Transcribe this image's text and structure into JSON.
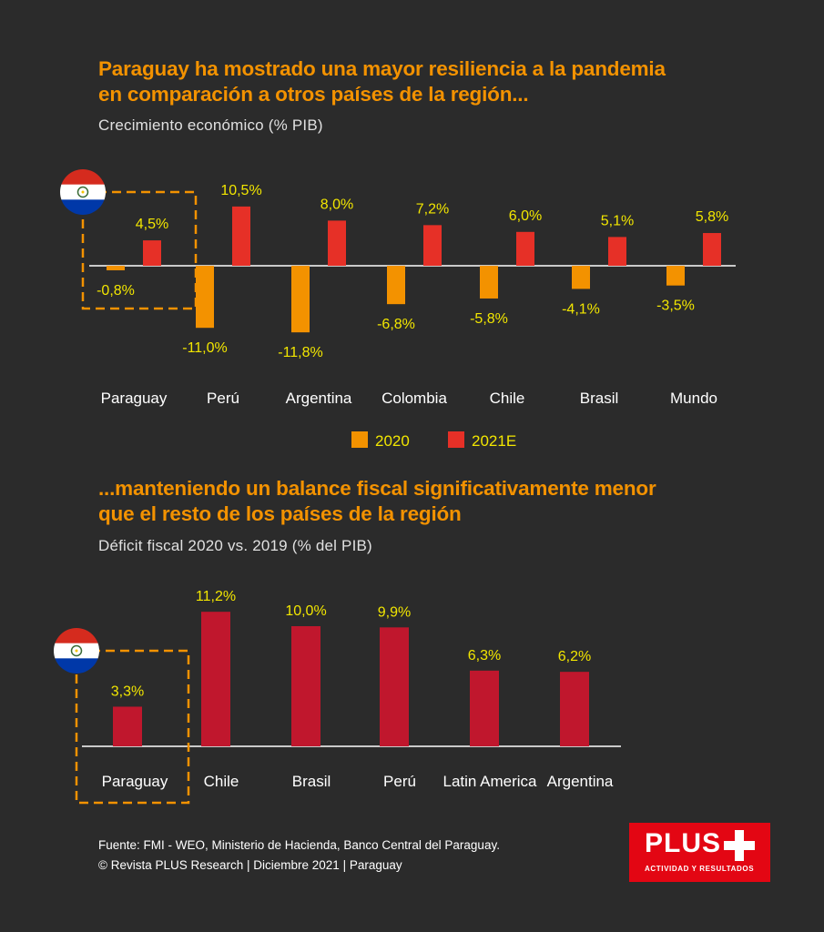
{
  "headline1": [
    "Paraguay ha mostrado una mayor resiliencia a la pandemia",
    "en comparación a otros países de la región..."
  ],
  "subtitle1": "Crecimiento económico (% PIB)",
  "headline2": [
    "...manteniendo un balance fiscal significativamente menor",
    "que el resto de los países de la región"
  ],
  "subtitle2": "Déficit fiscal 2020 vs. 2019 (% del PIB)",
  "colors": {
    "bg": "#2b2b2b",
    "orange": "#f39200",
    "red": "#e63027",
    "darkred": "#c0172d",
    "label": "#f2e600"
  },
  "chart_data": [
    {
      "type": "bar",
      "categories": [
        "Paraguay",
        "Perú",
        "Argentina",
        "Colombia",
        "Chile",
        "Brasil",
        "Mundo"
      ],
      "series": [
        {
          "name": "2020",
          "values": [
            -0.8,
            -11.0,
            -11.8,
            -6.8,
            -5.8,
            -4.1,
            -3.5
          ],
          "labels": [
            "-0,8%",
            "-11,0%",
            "-11,8%",
            "-6,8%",
            "-5,8%",
            "-4,1%",
            "-3,5%"
          ],
          "color": "#f39200"
        },
        {
          "name": "2021E",
          "values": [
            4.5,
            10.5,
            8.0,
            7.2,
            6.0,
            5.1,
            5.8
          ],
          "labels": [
            "4,5%",
            "10,5%",
            "8,0%",
            "7,2%",
            "6,0%",
            "5,1%",
            "5,8%"
          ],
          "color": "#e63027"
        }
      ],
      "legend": "bottom",
      "highlight": "Paraguay"
    },
    {
      "type": "bar",
      "categories": [
        "Paraguay",
        "Chile",
        "Brasil",
        "Perú",
        "Latin America",
        "Argentina"
      ],
      "values": [
        3.3,
        11.2,
        10.0,
        9.9,
        6.3,
        6.2
      ],
      "labels": [
        "3,3%",
        "11,2%",
        "10,0%",
        "9,9%",
        "6,3%",
        "6,2%"
      ],
      "color": "#c0172d",
      "highlight": "Paraguay"
    }
  ],
  "footer": [
    "Fuente: FMI - WEO, Ministerio de Hacienda, Banco Central del Paraguay.",
    "© Revista PLUS Research | Diciembre 2021 | Paraguay"
  ],
  "logo": {
    "main": "PLUS",
    "sub": "ACTIVIDAD Y RESULTADOS"
  }
}
